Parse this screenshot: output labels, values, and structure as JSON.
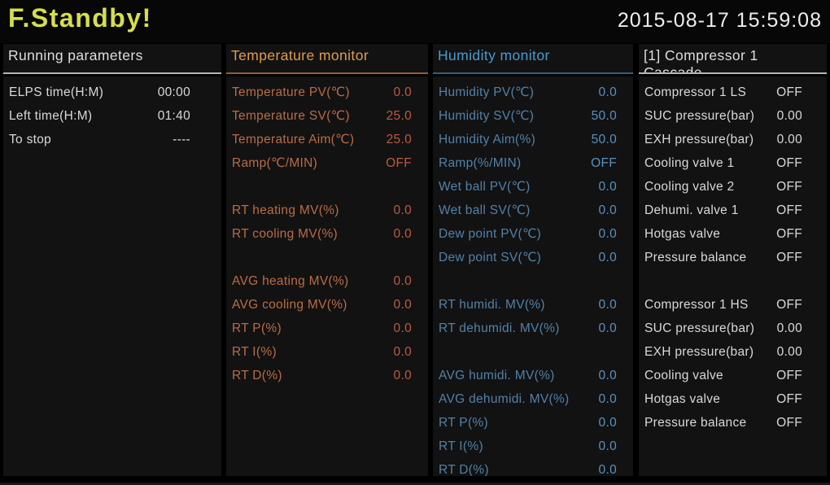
{
  "titlebar": {
    "status": "F.Standby!",
    "datetime": "2015-08-17 15:59:08"
  },
  "colors": {
    "status_accent": "#d6df4a",
    "temperature_accent": "#e09b4f",
    "humidity_accent": "#4b9bcd",
    "neutral_text": "#d9d9d9",
    "panel_background": "#121212"
  },
  "panels": [
    {
      "header": "Running parameters",
      "header2": "",
      "rows": [
        {
          "label": "ELPS time(H:M)",
          "value": "00:00"
        },
        {
          "label": "Left time(H:M)",
          "value": "01:40"
        },
        {
          "label": "To stop",
          "value": "----"
        }
      ]
    },
    {
      "header": "Temperature monitor",
      "header2": "",
      "rows": [
        {
          "label": "Temperature PV(℃)",
          "value": "0.0"
        },
        {
          "label": "Temperature SV(℃)",
          "value": "25.0"
        },
        {
          "label": "Temperature Aim(℃)",
          "value": "25.0"
        },
        {
          "label": "Ramp(℃/MIN)",
          "value": "OFF"
        },
        {
          "label": "",
          "value": ""
        },
        {
          "label": "RT heating MV(%)",
          "value": "0.0"
        },
        {
          "label": "RT cooling MV(%)",
          "value": "0.0"
        },
        {
          "label": "",
          "value": ""
        },
        {
          "label": "AVG heating MV(%)",
          "value": "0.0"
        },
        {
          "label": "AVG cooling MV(%)",
          "value": "0.0"
        },
        {
          "label": "RT P(%)",
          "value": "0.0"
        },
        {
          "label": "RT I(%)",
          "value": "0.0"
        },
        {
          "label": "RT D(%)",
          "value": "0.0"
        }
      ]
    },
    {
      "header": "Humidity monitor",
      "header2": "",
      "rows": [
        {
          "label": "Humidity PV(℃)",
          "value": "0.0"
        },
        {
          "label": "Humidity SV(℃)",
          "value": "50.0"
        },
        {
          "label": "Humidity Aim(%)",
          "value": "50.0"
        },
        {
          "label": "Ramp(%/MIN)",
          "value": "OFF"
        },
        {
          "label": "Wet ball PV(℃)",
          "value": "0.0"
        },
        {
          "label": "Wet ball SV(℃)",
          "value": "0.0"
        },
        {
          "label": "Dew point PV(℃)",
          "value": "0.0"
        },
        {
          "label": "Dew point SV(℃)",
          "value": "0.0"
        },
        {
          "label": "",
          "value": ""
        },
        {
          "label": "RT humidi. MV(%)",
          "value": "0.0"
        },
        {
          "label": "RT dehumidi. MV(%)",
          "value": "0.0"
        },
        {
          "label": "",
          "value": ""
        },
        {
          "label": "AVG humidi. MV(%)",
          "value": "0.0"
        },
        {
          "label": "AVG dehumidi. MV(%)",
          "value": "0.0"
        },
        {
          "label": "RT P(%)",
          "value": "0.0"
        },
        {
          "label": "RT I(%)",
          "value": "0.0"
        },
        {
          "label": "RT D(%)",
          "value": "0.0"
        }
      ]
    },
    {
      "header": "[1] Compressor 1",
      "header2": "Cascade",
      "rows": [
        {
          "label": "Compressor 1 LS",
          "value": "OFF"
        },
        {
          "label": "SUC pressure(bar)",
          "value": "0.00"
        },
        {
          "label": "EXH pressure(bar)",
          "value": "0.00"
        },
        {
          "label": "Cooling valve 1",
          "value": "OFF"
        },
        {
          "label": "Cooling valve 2",
          "value": "OFF"
        },
        {
          "label": "Dehumi. valve 1",
          "value": "OFF"
        },
        {
          "label": "Hotgas valve",
          "value": "OFF"
        },
        {
          "label": "Pressure balance",
          "value": "OFF"
        },
        {
          "label": "",
          "value": ""
        },
        {
          "label": "Compressor 1 HS",
          "value": "OFF"
        },
        {
          "label": "SUC pressure(bar)",
          "value": "0.00"
        },
        {
          "label": "EXH pressure(bar)",
          "value": "0.00"
        },
        {
          "label": "Cooling valve",
          "value": "OFF"
        },
        {
          "label": "Hotgas valve",
          "value": "OFF"
        },
        {
          "label": "Pressure balance",
          "value": "OFF"
        }
      ]
    }
  ]
}
